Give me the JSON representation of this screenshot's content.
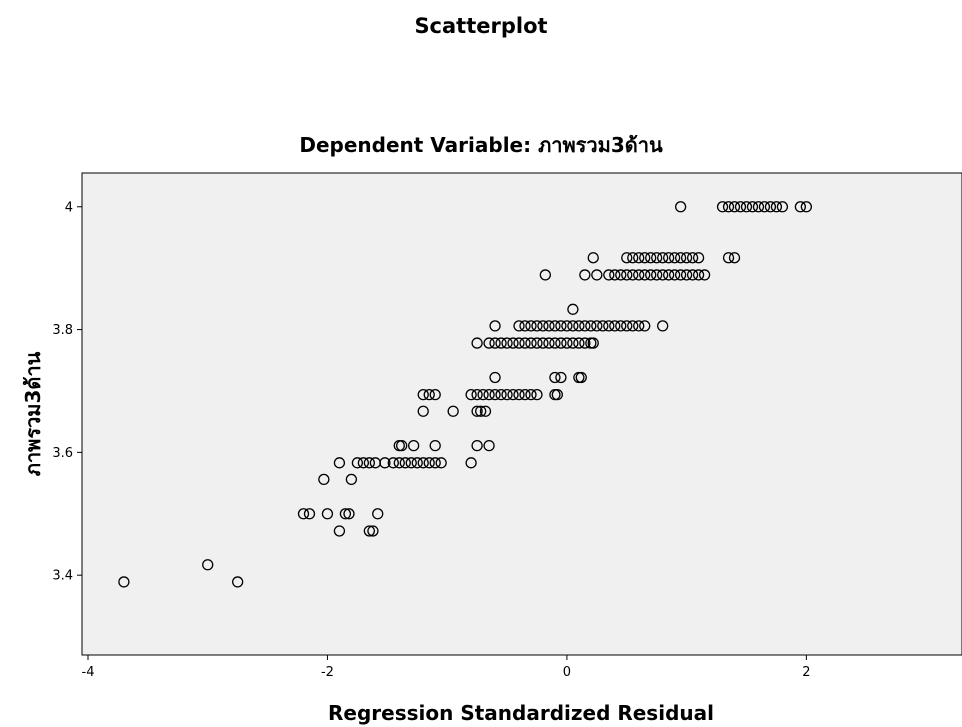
{
  "chart_data": {
    "type": "scatter",
    "title": "Scatterplot",
    "subtitle": "Dependent Variable: ภาพรวม3ด้าน",
    "xlabel": "Regression Standardized Residual",
    "ylabel": "ภาพรวม3ด้าน",
    "xlim": [
      -4.05,
      3.3
    ],
    "ylim": [
      3.27,
      4.055
    ],
    "xticks": [
      -4,
      -2,
      0,
      2
    ],
    "xtick_labels": [
      "-4",
      "-2",
      "0",
      "2"
    ],
    "yticks": [
      3.4,
      3.6,
      3.8,
      4.0
    ],
    "ytick_labels": [
      "3.4",
      "3.6",
      "3.8",
      "4"
    ],
    "grid": false,
    "colors": {
      "background": "#ffffff",
      "plot_area": "#f0f0f0",
      "marker_stroke": "#000000"
    },
    "points": [
      [
        -3.7,
        3.389
      ],
      [
        -3.0,
        3.417
      ],
      [
        -2.75,
        3.389
      ],
      [
        -2.2,
        3.5
      ],
      [
        -2.15,
        3.5
      ],
      [
        -2.0,
        3.5
      ],
      [
        -1.9,
        3.472
      ],
      [
        -1.85,
        3.5
      ],
      [
        -1.82,
        3.5
      ],
      [
        -1.65,
        3.472
      ],
      [
        -1.62,
        3.472
      ],
      [
        -1.58,
        3.5
      ],
      [
        -2.03,
        3.556
      ],
      [
        -1.8,
        3.556
      ],
      [
        -1.9,
        3.583
      ],
      [
        -1.75,
        3.583
      ],
      [
        -1.7,
        3.583
      ],
      [
        -1.65,
        3.583
      ],
      [
        -1.6,
        3.583
      ],
      [
        -1.52,
        3.583
      ],
      [
        -1.45,
        3.583
      ],
      [
        -1.4,
        3.583
      ],
      [
        -1.35,
        3.583
      ],
      [
        -1.3,
        3.583
      ],
      [
        -1.25,
        3.583
      ],
      [
        -1.2,
        3.583
      ],
      [
        -1.15,
        3.583
      ],
      [
        -1.1,
        3.583
      ],
      [
        -1.05,
        3.583
      ],
      [
        -0.8,
        3.583
      ],
      [
        -1.4,
        3.611
      ],
      [
        -1.38,
        3.611
      ],
      [
        -1.28,
        3.611
      ],
      [
        -1.1,
        3.611
      ],
      [
        -0.75,
        3.611
      ],
      [
        -0.65,
        3.611
      ],
      [
        -1.2,
        3.667
      ],
      [
        -0.95,
        3.667
      ],
      [
        -0.75,
        3.667
      ],
      [
        -0.72,
        3.667
      ],
      [
        -0.68,
        3.667
      ],
      [
        -1.2,
        3.694
      ],
      [
        -1.15,
        3.694
      ],
      [
        -1.1,
        3.694
      ],
      [
        -0.8,
        3.694
      ],
      [
        -0.75,
        3.694
      ],
      [
        -0.7,
        3.694
      ],
      [
        -0.65,
        3.694
      ],
      [
        -0.6,
        3.694
      ],
      [
        -0.55,
        3.694
      ],
      [
        -0.5,
        3.694
      ],
      [
        -0.45,
        3.694
      ],
      [
        -0.4,
        3.694
      ],
      [
        -0.35,
        3.694
      ],
      [
        -0.3,
        3.694
      ],
      [
        -0.25,
        3.694
      ],
      [
        -0.1,
        3.694
      ],
      [
        -0.08,
        3.694
      ],
      [
        -0.6,
        3.722
      ],
      [
        -0.1,
        3.722
      ],
      [
        -0.05,
        3.722
      ],
      [
        0.1,
        3.722
      ],
      [
        0.12,
        3.722
      ],
      [
        -0.75,
        3.778
      ],
      [
        -0.65,
        3.778
      ],
      [
        -0.6,
        3.778
      ],
      [
        -0.55,
        3.778
      ],
      [
        -0.5,
        3.778
      ],
      [
        -0.45,
        3.778
      ],
      [
        -0.4,
        3.778
      ],
      [
        -0.35,
        3.778
      ],
      [
        -0.3,
        3.778
      ],
      [
        -0.25,
        3.778
      ],
      [
        -0.2,
        3.778
      ],
      [
        -0.15,
        3.778
      ],
      [
        -0.1,
        3.778
      ],
      [
        -0.05,
        3.778
      ],
      [
        0.0,
        3.778
      ],
      [
        0.05,
        3.778
      ],
      [
        0.1,
        3.778
      ],
      [
        0.15,
        3.778
      ],
      [
        0.2,
        3.778
      ],
      [
        0.22,
        3.778
      ],
      [
        -0.6,
        3.806
      ],
      [
        -0.4,
        3.806
      ],
      [
        -0.35,
        3.806
      ],
      [
        -0.3,
        3.806
      ],
      [
        -0.25,
        3.806
      ],
      [
        -0.2,
        3.806
      ],
      [
        -0.15,
        3.806
      ],
      [
        -0.1,
        3.806
      ],
      [
        -0.05,
        3.806
      ],
      [
        0.0,
        3.806
      ],
      [
        0.05,
        3.806
      ],
      [
        0.1,
        3.806
      ],
      [
        0.15,
        3.806
      ],
      [
        0.2,
        3.806
      ],
      [
        0.25,
        3.806
      ],
      [
        0.3,
        3.806
      ],
      [
        0.35,
        3.806
      ],
      [
        0.4,
        3.806
      ],
      [
        0.45,
        3.806
      ],
      [
        0.5,
        3.806
      ],
      [
        0.55,
        3.806
      ],
      [
        0.6,
        3.806
      ],
      [
        0.65,
        3.806
      ],
      [
        0.8,
        3.806
      ],
      [
        0.05,
        3.833
      ],
      [
        -0.18,
        3.889
      ],
      [
        0.15,
        3.889
      ],
      [
        0.25,
        3.889
      ],
      [
        0.35,
        3.889
      ],
      [
        0.4,
        3.889
      ],
      [
        0.45,
        3.889
      ],
      [
        0.5,
        3.889
      ],
      [
        0.55,
        3.889
      ],
      [
        0.6,
        3.889
      ],
      [
        0.65,
        3.889
      ],
      [
        0.7,
        3.889
      ],
      [
        0.75,
        3.889
      ],
      [
        0.8,
        3.889
      ],
      [
        0.85,
        3.889
      ],
      [
        0.9,
        3.889
      ],
      [
        0.95,
        3.889
      ],
      [
        1.0,
        3.889
      ],
      [
        1.05,
        3.889
      ],
      [
        1.1,
        3.889
      ],
      [
        1.15,
        3.889
      ],
      [
        0.22,
        3.917
      ],
      [
        0.5,
        3.917
      ],
      [
        0.55,
        3.917
      ],
      [
        0.6,
        3.917
      ],
      [
        0.65,
        3.917
      ],
      [
        0.7,
        3.917
      ],
      [
        0.75,
        3.917
      ],
      [
        0.8,
        3.917
      ],
      [
        0.85,
        3.917
      ],
      [
        0.9,
        3.917
      ],
      [
        0.95,
        3.917
      ],
      [
        1.0,
        3.917
      ],
      [
        1.05,
        3.917
      ],
      [
        1.1,
        3.917
      ],
      [
        1.35,
        3.917
      ],
      [
        1.4,
        3.917
      ],
      [
        0.95,
        4.0
      ],
      [
        1.3,
        4.0
      ],
      [
        1.35,
        4.0
      ],
      [
        1.4,
        4.0
      ],
      [
        1.45,
        4.0
      ],
      [
        1.5,
        4.0
      ],
      [
        1.55,
        4.0
      ],
      [
        1.6,
        4.0
      ],
      [
        1.65,
        4.0
      ],
      [
        1.7,
        4.0
      ],
      [
        1.75,
        4.0
      ],
      [
        1.8,
        4.0
      ],
      [
        1.95,
        4.0
      ],
      [
        2.0,
        4.0
      ]
    ]
  }
}
